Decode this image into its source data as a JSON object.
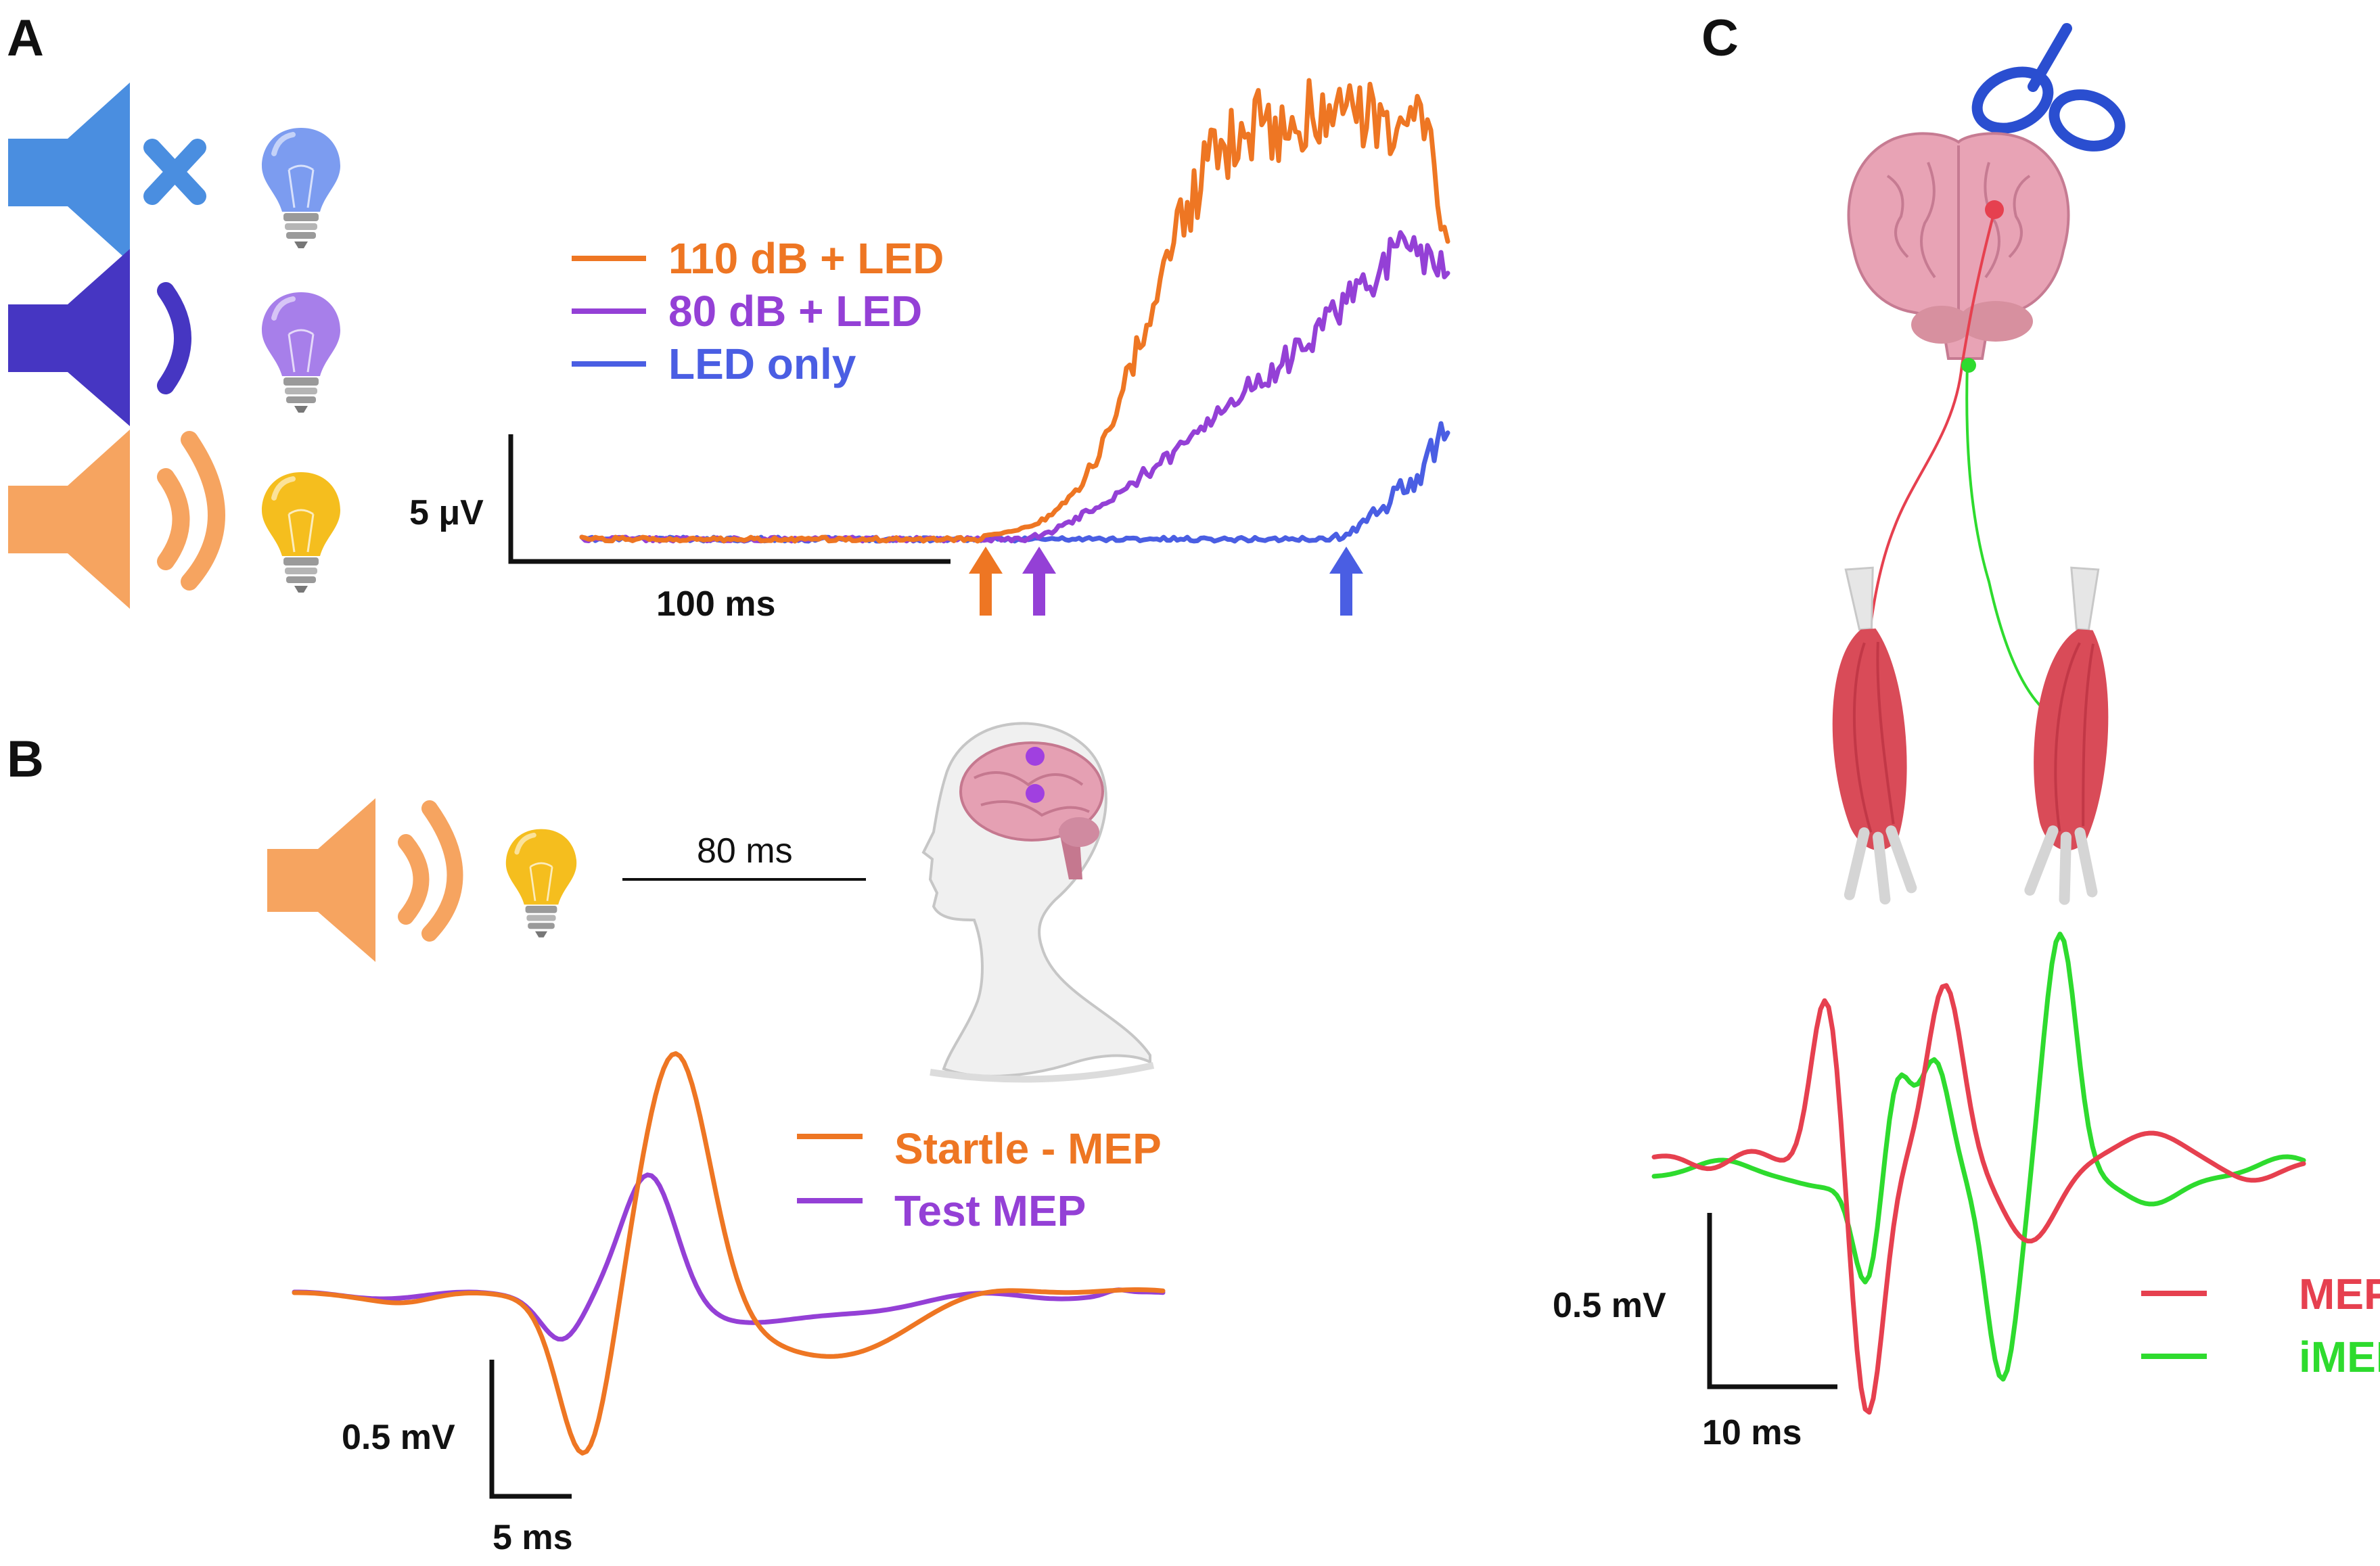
{
  "panels": {
    "a": {
      "label": "A",
      "legend": [
        "110 dB + LED",
        "80 dB + LED",
        "LED only"
      ],
      "scale_y": "5 μV",
      "scale_x": "100 ms"
    },
    "b": {
      "label": "B",
      "interval": "80 ms",
      "legend": [
        "Startle - MEP",
        "Test MEP"
      ],
      "scale_y": "0.5 mV",
      "scale_x": "5 ms"
    },
    "c": {
      "label": "C",
      "legend": [
        "MEP",
        "iMEP"
      ],
      "scale_y": "0.5 mV",
      "scale_x": "10 ms"
    }
  },
  "icons": [
    "speaker-muted-icon",
    "speaker-low-icon",
    "speaker-loud-icon",
    "lightbulb-icon",
    "head-silhouette-icon",
    "brain-icon",
    "tms-coil-icon",
    "muscle-icon",
    "arrow-up-icon"
  ],
  "colors": {
    "orange": "#EE7623",
    "purple": "#9440D6",
    "blue": "#4A5EE3",
    "red": "#E6404F",
    "green": "#2EDB2E",
    "speaker_muted": "#4A8EE0",
    "speaker_low": "#4636C2",
    "speaker_loud": "#F6A460",
    "bulb_blue": "#7C9CF0",
    "bulb_purple": "#A77FEA",
    "bulb_yellow": "#F5BE1E"
  }
}
